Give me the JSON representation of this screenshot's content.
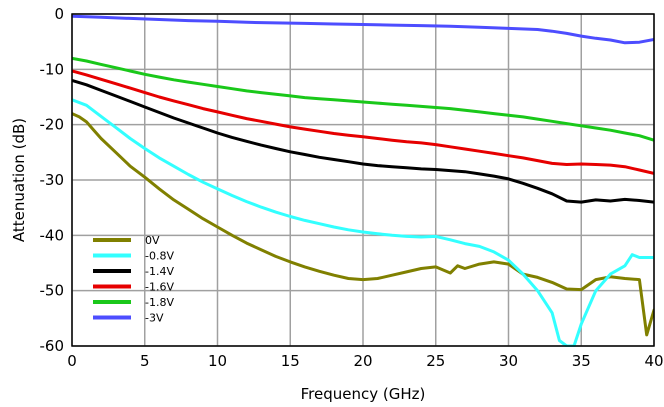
{
  "chart_data": {
    "type": "line",
    "title": "",
    "xlabel": "Frequency (GHz)",
    "ylabel": "Attenuation (dB)",
    "xlim": [
      0,
      40
    ],
    "ylim": [
      -60,
      0
    ],
    "xticks": [
      0,
      5,
      10,
      15,
      20,
      25,
      30,
      35,
      40
    ],
    "yticks": [
      0,
      -10,
      -20,
      -30,
      -40,
      -50,
      -60
    ],
    "grid": true,
    "legend_position": "bottom-left",
    "series": [
      {
        "name": "0V",
        "color": "#808000",
        "x": [
          0,
          0.5,
          1,
          1.5,
          2,
          3,
          4,
          5,
          6,
          7,
          8,
          9,
          10,
          11,
          12,
          13,
          14,
          15,
          16,
          17,
          18,
          19,
          20,
          21,
          22,
          23,
          24,
          25,
          26,
          26.5,
          27,
          28,
          29,
          30,
          31,
          32,
          33,
          34,
          35,
          36,
          37,
          38,
          39,
          39.5,
          40
        ],
        "y": [
          -18,
          -18.6,
          -19.5,
          -21,
          -22.5,
          -25,
          -27.5,
          -29.5,
          -31.6,
          -33.6,
          -35.3,
          -37,
          -38.5,
          -40,
          -41.4,
          -42.6,
          -43.8,
          -44.8,
          -45.7,
          -46.5,
          -47.2,
          -47.8,
          -48,
          -47.8,
          -47.2,
          -46.6,
          -46,
          -45.7,
          -46.8,
          -45.5,
          -46,
          -45.2,
          -44.8,
          -45.2,
          -47,
          -47.6,
          -48.5,
          -49.7,
          -49.8,
          -48,
          -47.5,
          -47.8,
          -48,
          -58,
          -53.5
        ]
      },
      {
        "name": "-0.8V",
        "color": "#33ffff",
        "x": [
          0,
          1,
          2,
          3,
          4,
          5,
          6,
          7,
          8,
          9,
          10,
          11,
          12,
          13,
          14,
          15,
          16,
          17,
          18,
          19,
          20,
          21,
          22,
          23,
          24,
          25,
          26,
          27,
          28,
          29,
          30,
          31,
          31.5,
          32,
          33,
          33.5,
          34,
          34.5,
          35,
          36,
          37,
          38,
          38.5,
          39,
          40
        ],
        "y": [
          -15.5,
          -16.5,
          -18.5,
          -20.5,
          -22.5,
          -24.3,
          -26,
          -27.5,
          -29,
          -30.4,
          -31.6,
          -32.8,
          -33.9,
          -34.9,
          -35.8,
          -36.6,
          -37.3,
          -37.9,
          -38.5,
          -39,
          -39.4,
          -39.7,
          -40,
          -40.2,
          -40.3,
          -40.2,
          -40.8,
          -41.5,
          -42,
          -43,
          -44.5,
          -47,
          -48.5,
          -50,
          -54,
          -59,
          -60,
          -60,
          -56,
          -50,
          -47,
          -45.5,
          -43.5,
          -44,
          -44
        ]
      },
      {
        "name": "-1.4V",
        "color": "#000000",
        "x": [
          0,
          1,
          2,
          3,
          4,
          5,
          6,
          7,
          8,
          9,
          10,
          11,
          12,
          13,
          14,
          15,
          16,
          17,
          18,
          19,
          20,
          21,
          22,
          23,
          24,
          25,
          26,
          27,
          28,
          29,
          30,
          31,
          32,
          33,
          34,
          35,
          36,
          37,
          38,
          39,
          40
        ],
        "y": [
          -12,
          -12.8,
          -13.8,
          -14.8,
          -15.8,
          -16.8,
          -17.8,
          -18.8,
          -19.7,
          -20.6,
          -21.5,
          -22.3,
          -23,
          -23.7,
          -24.3,
          -24.9,
          -25.4,
          -25.9,
          -26.3,
          -26.7,
          -27.1,
          -27.4,
          -27.6,
          -27.8,
          -28,
          -28.1,
          -28.3,
          -28.5,
          -28.9,
          -29.3,
          -29.8,
          -30.6,
          -31.5,
          -32.5,
          -33.8,
          -34,
          -33.6,
          -33.8,
          -33.5,
          -33.7,
          -34
        ]
      },
      {
        "name": "-1.6V",
        "color": "#e60000",
        "x": [
          0,
          1,
          2,
          3,
          4,
          5,
          6,
          7,
          8,
          9,
          10,
          11,
          12,
          13,
          14,
          15,
          16,
          17,
          18,
          19,
          20,
          21,
          22,
          23,
          24,
          25,
          26,
          27,
          28,
          29,
          30,
          31,
          32,
          33,
          34,
          35,
          36,
          37,
          38,
          39,
          40
        ],
        "y": [
          -10.3,
          -11,
          -11.8,
          -12.6,
          -13.4,
          -14.2,
          -15,
          -15.7,
          -16.4,
          -17.1,
          -17.7,
          -18.3,
          -18.9,
          -19.4,
          -19.9,
          -20.4,
          -20.8,
          -21.2,
          -21.6,
          -21.9,
          -22.2,
          -22.5,
          -22.8,
          -23.1,
          -23.3,
          -23.6,
          -24,
          -24.4,
          -24.8,
          -25.2,
          -25.6,
          -26,
          -26.5,
          -27,
          -27.2,
          -27.1,
          -27.2,
          -27.3,
          -27.6,
          -28.2,
          -28.8
        ]
      },
      {
        "name": "-1.8V",
        "color": "#1ac81a",
        "x": [
          0,
          1,
          2,
          3,
          4,
          5,
          6,
          7,
          8,
          9,
          10,
          11,
          12,
          13,
          14,
          15,
          16,
          17,
          18,
          19,
          20,
          21,
          22,
          23,
          24,
          25,
          26,
          27,
          28,
          29,
          30,
          31,
          32,
          33,
          34,
          35,
          36,
          37,
          38,
          39,
          40
        ],
        "y": [
          -8,
          -8.5,
          -9.1,
          -9.7,
          -10.3,
          -10.9,
          -11.4,
          -11.9,
          -12.3,
          -12.7,
          -13.1,
          -13.5,
          -13.9,
          -14.2,
          -14.5,
          -14.8,
          -15.1,
          -15.3,
          -15.5,
          -15.7,
          -15.9,
          -16.1,
          -16.3,
          -16.5,
          -16.7,
          -16.9,
          -17.1,
          -17.4,
          -17.7,
          -18,
          -18.3,
          -18.6,
          -19,
          -19.4,
          -19.8,
          -20.2,
          -20.6,
          -21,
          -21.5,
          -22,
          -22.8
        ]
      },
      {
        "name": "-3V",
        "color": "#4d4dff",
        "x": [
          0,
          2,
          4,
          6,
          8,
          10,
          12,
          14,
          16,
          18,
          20,
          22,
          24,
          26,
          28,
          30,
          32,
          33,
          34,
          35,
          36,
          37,
          38,
          39,
          40
        ],
        "y": [
          -0.4,
          -0.6,
          -0.8,
          -1,
          -1.2,
          -1.3,
          -1.5,
          -1.6,
          -1.7,
          -1.8,
          -1.9,
          -2,
          -2.1,
          -2.2,
          -2.4,
          -2.6,
          -2.8,
          -3.1,
          -3.5,
          -4,
          -4.4,
          -4.7,
          -5.2,
          -5.1,
          -4.6
        ]
      }
    ]
  }
}
